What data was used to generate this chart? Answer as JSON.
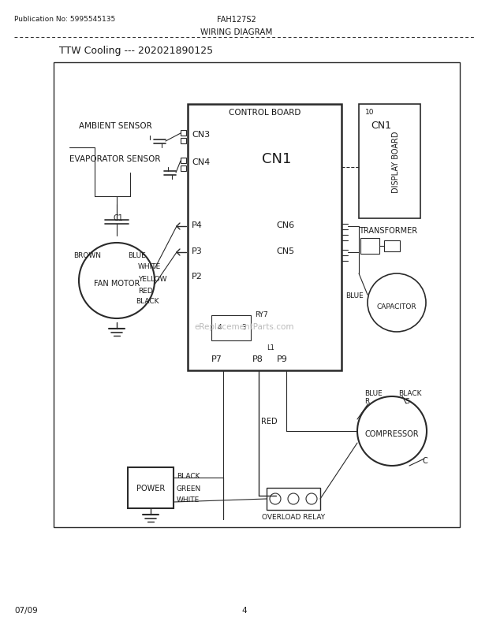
{
  "title_pub": "Publication No: 5995545135",
  "title_model": "FAH127S2",
  "title_diagram": "WIRING DIAGRAM",
  "title_ttw": "TTW Cooling --- 202021890125",
  "footer_date": "07/09",
  "footer_page": "4",
  "bg_color": "#ffffff",
  "line_color": "#2a2a2a",
  "text_color": "#1a1a1a",
  "watermark": "eReplacementParts.com"
}
